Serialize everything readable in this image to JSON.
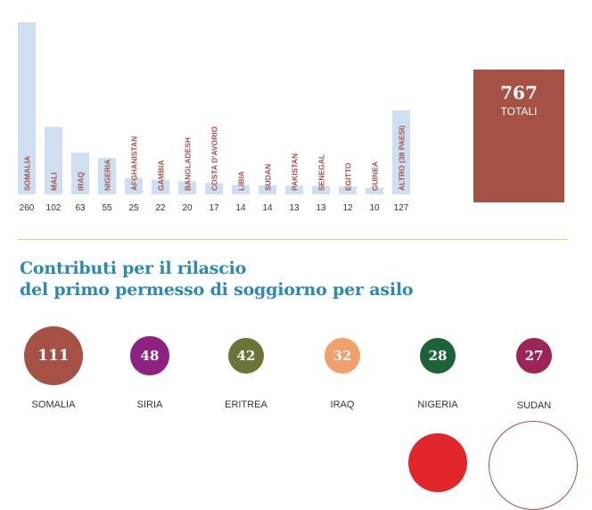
{
  "chart_data": [
    {
      "type": "bar",
      "categories": [
        "SOMALIA",
        "MALI",
        "IRAQ",
        "NIGERIA",
        "AFGHANISTAN",
        "GAMBIA",
        "BANGLADESH",
        "COSTA D'AVORIO",
        "LIBIA",
        "SUDAN",
        "PAKISTAN",
        "SENEGAL",
        "EGITTO",
        "GUINEA",
        "ALTRO (38 PAESI)"
      ],
      "values": [
        260,
        102,
        63,
        55,
        25,
        22,
        20,
        17,
        14,
        14,
        13,
        13,
        12,
        10,
        127
      ],
      "ylim": [
        0,
        260
      ],
      "bar_color": "#cfdff2",
      "label_color": "#a55145",
      "total": {
        "value": "767",
        "label": "TOTALI",
        "color": "#a55145"
      }
    },
    {
      "type": "bubble",
      "title_lines": [
        "Contributi per il rilascio",
        "del primo permesso di soggiorno per asilo"
      ],
      "title_color": "#2a8ab1",
      "categories": [
        "SOMALIA",
        "SIRIA",
        "ERITREA",
        "IRAQ",
        "NIGERIA",
        "SUDAN"
      ],
      "values": [
        111,
        48,
        42,
        32,
        28,
        27
      ],
      "colors": [
        "#a55145",
        "#8e2280",
        "#6d7337",
        "#f1a06c",
        "#1c6338",
        "#9b2556"
      ]
    }
  ],
  "divider_color": "#f0c86e",
  "partial_circles": [
    {
      "name": "red-bubble-partial",
      "color": "#e0262b",
      "filled": true
    },
    {
      "name": "outlined-bubble-partial",
      "color": "#a55145",
      "filled": false
    }
  ]
}
